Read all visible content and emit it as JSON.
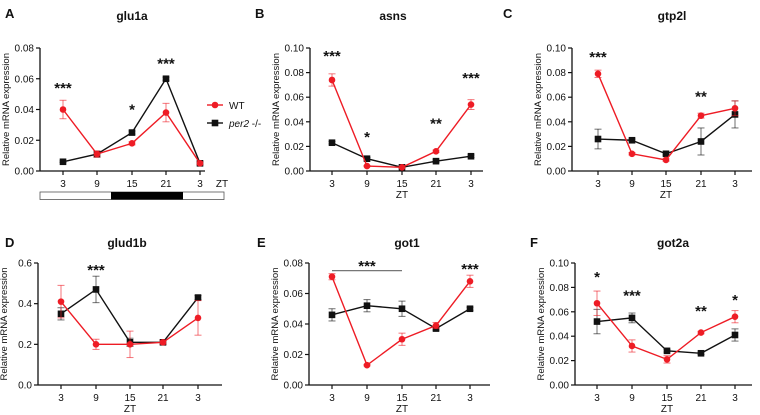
{
  "colors": {
    "WT": "#ee1c25",
    "per2": "#111111"
  },
  "legend": {
    "items": [
      {
        "name": "WT",
        "color": "#ee1c25",
        "marker": "circle"
      },
      {
        "name": "per2 -/-",
        "italic_part": "per2",
        "color": "#111111",
        "marker": "square"
      }
    ]
  },
  "light_dark_bar": {
    "segments": [
      "light",
      "dark",
      "light"
    ]
  },
  "chart_data": [
    {
      "type": "line",
      "panel": "A",
      "title": "glu1a",
      "ylabel": "Relative mRNA expression",
      "xlabel": "ZT",
      "categories": [
        "3",
        "9",
        "15",
        "21",
        "3"
      ],
      "ylim": [
        0,
        0.08
      ],
      "yticks": [
        "0.00",
        "0.02",
        "0.04",
        "0.06",
        "0.08"
      ],
      "series": [
        {
          "name": "WT",
          "values": [
            0.04,
            0.011,
            0.018,
            0.038,
            0.005
          ],
          "errors": [
            0.006,
            0.002,
            0.001,
            0.006,
            0.001
          ]
        },
        {
          "name": "per2 -/-",
          "values": [
            0.006,
            0.011,
            0.025,
            0.06,
            0.005
          ],
          "errors": [
            0.0005,
            0.002,
            0.001,
            0.001,
            0.001
          ]
        }
      ],
      "annotations": [
        {
          "text": "***",
          "x": 0,
          "y": 0.056
        },
        {
          "text": "*",
          "x": 2,
          "y": 0.042
        },
        {
          "text": "***",
          "x": 3,
          "y": 0.072
        }
      ]
    },
    {
      "type": "line",
      "panel": "B",
      "title": "asns",
      "ylabel": "Relative mRNA expression",
      "xlabel": "ZT",
      "categories": [
        "3",
        "9",
        "15",
        "21",
        "3"
      ],
      "ylim": [
        0,
        0.1
      ],
      "yticks": [
        "0.00",
        "0.02",
        "0.04",
        "0.06",
        "0.08",
        "0.10"
      ],
      "series": [
        {
          "name": "WT",
          "values": [
            0.074,
            0.004,
            0.003,
            0.016,
            0.054
          ],
          "errors": [
            0.005,
            0.0005,
            0.0005,
            0.001,
            0.004
          ]
        },
        {
          "name": "per2 -/-",
          "values": [
            0.023,
            0.01,
            0.003,
            0.008,
            0.012
          ],
          "errors": [
            0.001,
            0.001,
            0.0005,
            0.001,
            0.001
          ]
        }
      ],
      "annotations": [
        {
          "text": "***",
          "x": 0,
          "y": 0.096
        },
        {
          "text": "*",
          "x": 1,
          "y": 0.03
        },
        {
          "text": "**",
          "x": 3,
          "y": 0.041
        },
        {
          "text": "***",
          "x": 4,
          "y": 0.078
        }
      ]
    },
    {
      "type": "line",
      "panel": "C",
      "title": "gtp2l",
      "ylabel": "Relative mRNA expression",
      "xlabel": "ZT",
      "categories": [
        "3",
        "9",
        "15",
        "21",
        "3"
      ],
      "ylim": [
        0,
        0.1
      ],
      "yticks": [
        "0.00",
        "0.02",
        "0.04",
        "0.06",
        "0.08",
        "0.10"
      ],
      "series": [
        {
          "name": "WT",
          "values": [
            0.079,
            0.014,
            0.009,
            0.045,
            0.051
          ],
          "errors": [
            0.003,
            0.001,
            0.001,
            0.002,
            0.006
          ]
        },
        {
          "name": "per2 -/-",
          "values": [
            0.026,
            0.025,
            0.014,
            0.024,
            0.046
          ],
          "errors": [
            0.008,
            0.001,
            0.001,
            0.011,
            0.011
          ]
        }
      ],
      "annotations": [
        {
          "text": "***",
          "x": 0,
          "y": 0.095
        },
        {
          "text": "**",
          "x": 3,
          "y": 0.063
        }
      ]
    },
    {
      "type": "line",
      "panel": "D",
      "title": "glud1b",
      "ylabel": "Relative mRNA expression",
      "xlabel": "ZT",
      "categories": [
        "3",
        "9",
        "15",
        "21",
        "3"
      ],
      "ylim": [
        0,
        0.6
      ],
      "yticks": [
        "0.0",
        "0.2",
        "0.4",
        "0.6"
      ],
      "series": [
        {
          "name": "WT",
          "values": [
            0.41,
            0.2,
            0.2,
            0.21,
            0.33
          ],
          "errors": [
            0.08,
            0.025,
            0.065,
            0.01,
            0.085
          ]
        },
        {
          "name": "per2 -/-",
          "values": [
            0.35,
            0.47,
            0.21,
            0.21,
            0.43
          ],
          "errors": [
            0.03,
            0.065,
            0.02,
            0.01,
            0.01
          ]
        }
      ],
      "annotations": [
        {
          "text": "***",
          "x": 1,
          "y": 0.58
        }
      ]
    },
    {
      "type": "line",
      "panel": "E",
      "title": "got1",
      "ylabel": "Relative mRNA expression",
      "xlabel": "ZT",
      "categories": [
        "3",
        "9",
        "15",
        "21",
        "3"
      ],
      "ylim": [
        0,
        0.08
      ],
      "yticks": [
        "0.00",
        "0.02",
        "0.04",
        "0.06",
        "0.08"
      ],
      "series": [
        {
          "name": "WT",
          "values": [
            0.071,
            0.013,
            0.03,
            0.039,
            0.068
          ],
          "errors": [
            0.002,
            0.0005,
            0.004,
            0.002,
            0.004
          ]
        },
        {
          "name": "per2 -/-",
          "values": [
            0.046,
            0.052,
            0.05,
            0.037,
            0.05
          ],
          "errors": [
            0.004,
            0.004,
            0.005,
            0.001,
            0.001
          ]
        }
      ],
      "annotations": [
        {
          "text": "***",
          "x": 1,
          "y": 0.08
        },
        {
          "text": "***",
          "x": 4,
          "y": 0.078
        }
      ],
      "brackets": [
        {
          "from": 0,
          "to": 2,
          "y": 0.075
        }
      ]
    },
    {
      "type": "line",
      "panel": "F",
      "title": "got2a",
      "ylabel": "Relative mRNA expression",
      "xlabel": "ZT",
      "categories": [
        "3",
        "9",
        "15",
        "21",
        "3"
      ],
      "ylim": [
        0,
        0.1
      ],
      "yticks": [
        "0.00",
        "0.02",
        "0.04",
        "0.06",
        "0.08",
        "0.10"
      ],
      "series": [
        {
          "name": "WT",
          "values": [
            0.067,
            0.032,
            0.021,
            0.043,
            0.056
          ],
          "errors": [
            0.01,
            0.005,
            0.003,
            0.001,
            0.005
          ]
        },
        {
          "name": "per2 -/-",
          "values": [
            0.052,
            0.055,
            0.028,
            0.026,
            0.041
          ],
          "errors": [
            0.01,
            0.004,
            0.001,
            0.001,
            0.005
          ]
        }
      ],
      "annotations": [
        {
          "text": "*",
          "x": 0,
          "y": 0.091
        },
        {
          "text": "***",
          "x": 1,
          "y": 0.076
        },
        {
          "text": "**",
          "x": 3,
          "y": 0.063
        },
        {
          "text": "*",
          "x": 4,
          "y": 0.072
        }
      ]
    }
  ]
}
